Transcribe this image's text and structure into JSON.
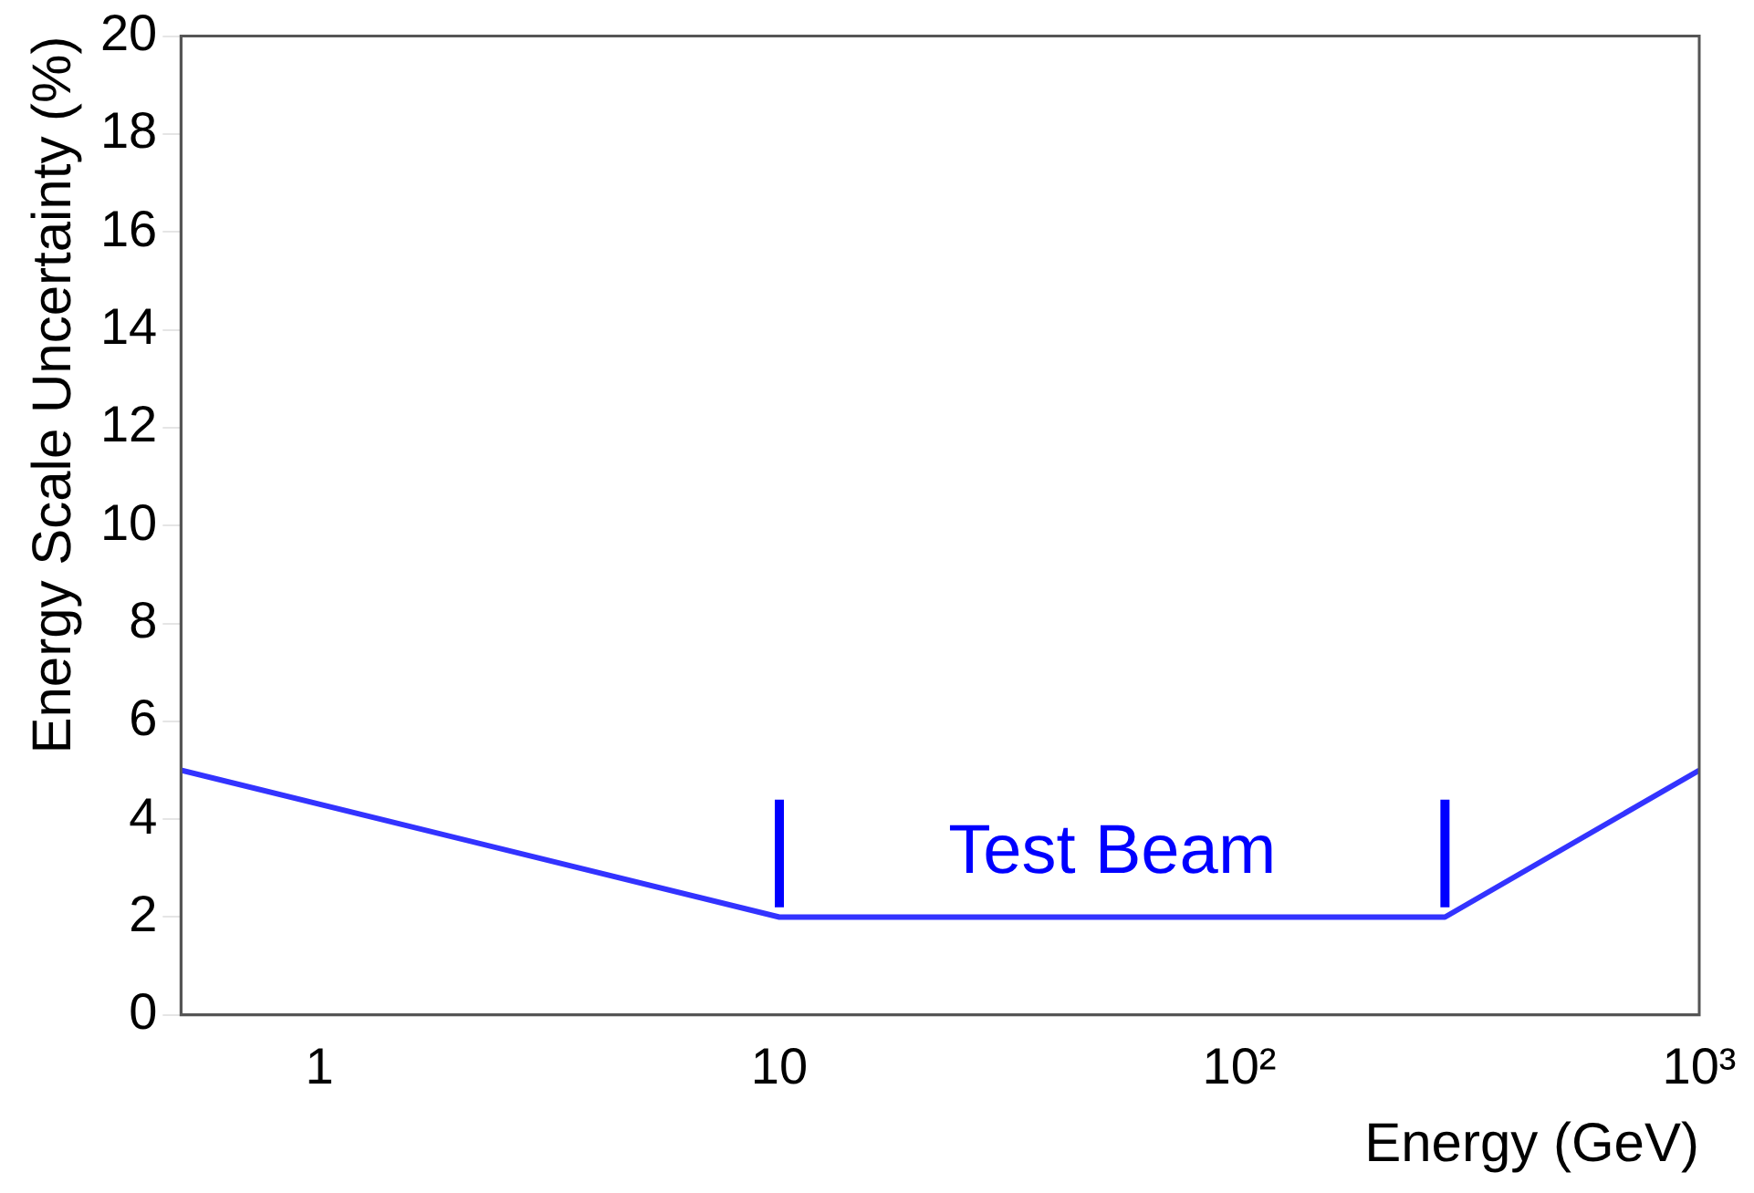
{
  "chart_data": {
    "type": "line",
    "xlabel": "Energy (GeV)",
    "ylabel": "Energy Scale Uncertainty (%)",
    "x": [
      0.5,
      10,
      280,
      1000
    ],
    "series": [
      {
        "color": "#3333ff",
        "values": [
          5,
          2,
          2,
          5
        ]
      }
    ],
    "log": "x",
    "xlim": [
      0.5,
      1000
    ],
    "xticks": [
      1,
      10,
      {
        "value": 100,
        "label": "10²"
      },
      {
        "value": 1000,
        "label": "10³"
      }
    ],
    "ylim": [
      0,
      20
    ],
    "yticks": [
      0,
      2,
      4,
      6,
      8,
      10,
      12,
      14,
      16,
      18,
      20
    ],
    "ref_lines": [
      {
        "axis": "x",
        "value": 10,
        "color": "#0000ff"
      },
      {
        "axis": "x",
        "value": 280,
        "color": "#0000ff"
      }
    ],
    "annotations": [
      "Test Beam"
    ],
    "grid": false,
    "legend": false,
    "marker": "none",
    "line_style": "solid"
  }
}
